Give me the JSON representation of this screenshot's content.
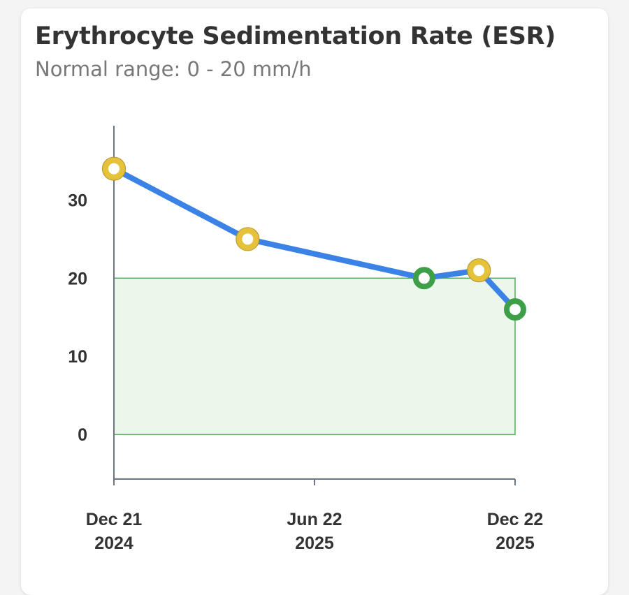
{
  "card": {
    "title": "Erythrocyte Sedimentation Rate (ESR)",
    "subtitle": "Normal range: 0 - 20 mm/h"
  },
  "chart_data": {
    "type": "line",
    "title": "Erythrocyte Sedimentation Rate (ESR)",
    "subtitle": "Normal range: 0 - 20 mm/h",
    "xlabel": "",
    "ylabel": "",
    "x": [
      "2024-12-21",
      "2025-04-22",
      "2025-09-30",
      "2025-11-19",
      "2025-12-22"
    ],
    "series": [
      {
        "values": [
          34,
          25,
          20,
          21,
          16
        ]
      }
    ],
    "point_status": [
      "high",
      "high",
      "normal",
      "high",
      "normal"
    ],
    "normal_range": [
      0,
      20
    ],
    "ylim": [
      -5.7,
      39.5
    ],
    "xlim": [
      "2024-12-21",
      "2025-12-22"
    ],
    "yticks": [
      "0",
      "10",
      "20",
      "30"
    ],
    "ytick_values": [
      0,
      10,
      20,
      30
    ],
    "xticks": [
      {
        "date": "2024-12-21",
        "line1": "Dec 21",
        "line2": "2024"
      },
      {
        "date": "2025-06-22",
        "line1": "Jun 22",
        "line2": "2025"
      },
      {
        "date": "2025-12-22",
        "line1": "Dec 22",
        "line2": "2025"
      }
    ],
    "grid": false,
    "colors": {
      "line": "#3b82e6",
      "high": "#e6c23a",
      "high_stroke": "#b89a2a",
      "normal": "#3f9e48",
      "range_fill": "#ebf7ea",
      "range_stroke": "#5aa85f",
      "axis": "#6b7785"
    }
  }
}
